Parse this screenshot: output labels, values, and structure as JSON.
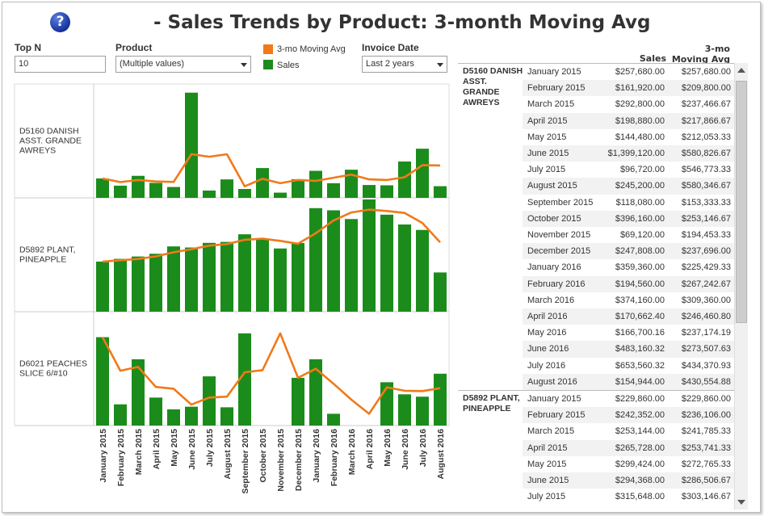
{
  "title": "- Sales Trends by Product: 3-month Moving Avg",
  "help_icon": "help-icon",
  "filters": {
    "topn_label": "Top N",
    "topn_value": "10",
    "product_label": "Product",
    "product_value": "(Multiple values)",
    "invoice_label": "Invoice Date",
    "invoice_value": "Last 2 years"
  },
  "legend": [
    {
      "label": "3-mo Moving Avg",
      "color": "#f07a1a"
    },
    {
      "label": "Sales",
      "color": "#1b8c1b"
    }
  ],
  "colors": {
    "sales": "#1b8c1b",
    "avg": "#f07a1a"
  },
  "months": [
    "January 2015",
    "February 2015",
    "March 2015",
    "April 2015",
    "May 2015",
    "June 2015",
    "July 2015",
    "August 2015",
    "September 2015",
    "October 2015",
    "November 2015",
    "December 2015",
    "January 2016",
    "February 2016",
    "March 2016",
    "April 2016",
    "May 2016",
    "June 2016",
    "July 2016",
    "August 2016"
  ],
  "chart_data": {
    "type": "bar",
    "categories": [
      "January 2015",
      "February 2015",
      "March 2015",
      "April 2015",
      "May 2015",
      "June 2015",
      "July 2015",
      "August 2015",
      "September 2015",
      "October 2015",
      "November 2015",
      "December 2015",
      "January 2016",
      "February 2016",
      "March 2016",
      "April 2016",
      "May 2016",
      "June 2016",
      "July 2016",
      "August 2016"
    ],
    "panels": [
      {
        "product": "D5160  DANISH ASST. GRANDE AWREYS",
        "ymax": 1450000,
        "series": [
          {
            "name": "Sales",
            "type": "bar",
            "values": [
              257680,
              161920,
              292800,
              198880,
              144480,
              1399120,
              96720,
              245200,
              118080,
              396160,
              69120,
              247808,
              359360,
              194560,
              374160,
              170662.4,
              166700.16,
              483160.32,
              653560.32,
              154944
            ]
          },
          {
            "name": "3-mo Moving Avg",
            "type": "line",
            "values": [
              257680,
              209800,
              237466.67,
              217866.67,
              212053.33,
              580826.67,
              546773.33,
              580346.67,
              153333.33,
              253146.67,
              194453.33,
              237696,
              225429.33,
              267242.67,
              309360,
              246460.8,
              237174.19,
              273507.63,
              434370.93,
              430554.88
            ]
          }
        ]
      },
      {
        "product": "D5892  PLANT, PINEAPPLE",
        "ymax": 500000,
        "series": [
          {
            "name": "Sales",
            "type": "bar",
            "values": [
              229860,
              242352,
              253144,
              265728,
              299424,
              294368,
              315648,
              320000,
              355000,
              330000,
              290000,
              315000,
              475000,
              465000,
              425000,
              515000,
              445000,
              400000,
              375000,
              180000
            ]
          },
          {
            "name": "3-mo Moving Avg",
            "type": "line",
            "values": [
              229860,
              236106,
              241785.33,
              253741.33,
              272765.33,
              286506.67,
              303146.67,
              310000,
              330000,
              335000,
              325000,
              312000,
              360000,
              418000,
              455000,
              468000,
              462000,
              453000,
              407000,
              318000
            ]
          }
        ]
      },
      {
        "product": "D6021 PEACHES SLICE 6/#10",
        "ymax": 370000,
        "series": [
          {
            "name": "Sales",
            "type": "bar",
            "values": [
              300000,
              72000,
              225000,
              95000,
              55000,
              64000,
              167000,
              62000,
              313000,
              0,
              0,
              162000,
              225000,
              40000,
              0,
              0,
              147000,
              106000,
              98000,
              176000
            ]
          },
          {
            "name": "3-mo Moving Avg",
            "type": "line",
            "values": [
              300000,
              186000,
              199000,
              131000,
              125000,
              71000,
              95000,
              98000,
              181000,
              188000,
              313000,
              162000,
              193000,
              142000,
              88000,
              40000,
              130000,
              118000,
              117000,
              127000
            ]
          }
        ]
      }
    ]
  },
  "table": {
    "col_sales": "Sales",
    "col_avg": "3-mo Moving Avg",
    "groups": [
      {
        "product": "D5160 DANISH ASST. GRANDE AWREYS",
        "rows": [
          {
            "month": "January 2015",
            "sales": "$257,680.00",
            "avg": "$257,680.00"
          },
          {
            "month": "February 2015",
            "sales": "$161,920.00",
            "avg": "$209,800.00"
          },
          {
            "month": "March 2015",
            "sales": "$292,800.00",
            "avg": "$237,466.67"
          },
          {
            "month": "April 2015",
            "sales": "$198,880.00",
            "avg": "$217,866.67"
          },
          {
            "month": "May 2015",
            "sales": "$144,480.00",
            "avg": "$212,053.33"
          },
          {
            "month": "June 2015",
            "sales": "$1,399,120.00",
            "avg": "$580,826.67"
          },
          {
            "month": "July 2015",
            "sales": "$96,720.00",
            "avg": "$546,773.33"
          },
          {
            "month": "August 2015",
            "sales": "$245,200.00",
            "avg": "$580,346.67"
          },
          {
            "month": "September 2015",
            "sales": "$118,080.00",
            "avg": "$153,333.33"
          },
          {
            "month": "October 2015",
            "sales": "$396,160.00",
            "avg": "$253,146.67"
          },
          {
            "month": "November 2015",
            "sales": "$69,120.00",
            "avg": "$194,453.33"
          },
          {
            "month": "December 2015",
            "sales": "$247,808.00",
            "avg": "$237,696.00"
          },
          {
            "month": "January 2016",
            "sales": "$359,360.00",
            "avg": "$225,429.33"
          },
          {
            "month": "February 2016",
            "sales": "$194,560.00",
            "avg": "$267,242.67"
          },
          {
            "month": "March 2016",
            "sales": "$374,160.00",
            "avg": "$309,360.00"
          },
          {
            "month": "April 2016",
            "sales": "$170,662.40",
            "avg": "$246,460.80"
          },
          {
            "month": "May 2016",
            "sales": "$166,700.16",
            "avg": "$237,174.19"
          },
          {
            "month": "June 2016",
            "sales": "$483,160.32",
            "avg": "$273,507.63"
          },
          {
            "month": "July 2016",
            "sales": "$653,560.32",
            "avg": "$434,370.93"
          },
          {
            "month": "August 2016",
            "sales": "$154,944.00",
            "avg": "$430,554.88"
          }
        ]
      },
      {
        "product": "D5892 PLANT, PINEAPPLE",
        "rows": [
          {
            "month": "January 2015",
            "sales": "$229,860.00",
            "avg": "$229,860.00"
          },
          {
            "month": "February 2015",
            "sales": "$242,352.00",
            "avg": "$236,106.00"
          },
          {
            "month": "March 2015",
            "sales": "$253,144.00",
            "avg": "$241,785.33"
          },
          {
            "month": "April 2015",
            "sales": "$265,728.00",
            "avg": "$253,741.33"
          },
          {
            "month": "May 2015",
            "sales": "$299,424.00",
            "avg": "$272,765.33"
          },
          {
            "month": "June 2015",
            "sales": "$294,368.00",
            "avg": "$286,506.67"
          },
          {
            "month": "July 2015",
            "sales": "$315,648.00",
            "avg": "$303,146.67"
          }
        ]
      }
    ]
  }
}
